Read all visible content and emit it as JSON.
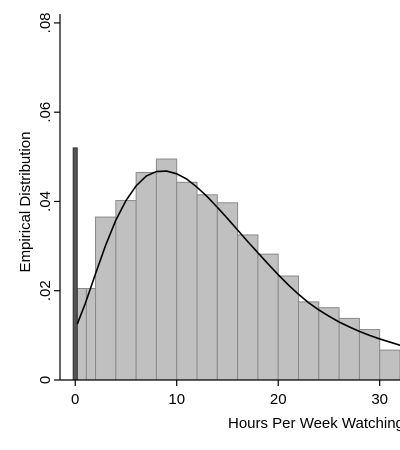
{
  "chart_data": {
    "type": "bar",
    "xlabel": "Hours Per Week Watching",
    "ylabel": "Empirical Distribution",
    "xlim": [
      -1.5,
      32
    ],
    "ylim": [
      0,
      0.082
    ],
    "x_ticks": [
      0,
      10,
      20,
      30
    ],
    "x_tick_labels": [
      "0",
      "10",
      "20",
      "30"
    ],
    "y_ticks": [
      0,
      0.02,
      0.04,
      0.06,
      0.08
    ],
    "y_tick_labels": [
      "0",
      ".02",
      ".04",
      ".06",
      ".08"
    ],
    "grid": false,
    "legend": "none",
    "zero_bar": {
      "x0": -0.2,
      "x1": 0.2,
      "value": 0.052,
      "color": "#555555"
    },
    "histogram": {
      "color": "#c0c0c0",
      "edge_color": "#8a8a8a",
      "bins": [
        {
          "x0": 0.2,
          "x1": 1.1,
          "value": 0.0205
        },
        {
          "x0": 1.1,
          "x2": 0,
          "x1": 2.0,
          "value": 0.0205
        },
        {
          "x0": 2.0,
          "x1": 4.0,
          "value": 0.0365
        },
        {
          "x0": 4.0,
          "x1": 6.0,
          "value": 0.0402
        },
        {
          "x0": 6.0,
          "x1": 8.0,
          "value": 0.0465
        },
        {
          "x0": 8.0,
          "x1": 10.0,
          "value": 0.0495
        },
        {
          "x0": 10.0,
          "x1": 12.0,
          "value": 0.0443
        },
        {
          "x0": 12.0,
          "x1": 14.0,
          "value": 0.0415
        },
        {
          "x0": 14.0,
          "x1": 16.0,
          "value": 0.0397
        },
        {
          "x0": 16.0,
          "x1": 18.0,
          "value": 0.0325
        },
        {
          "x0": 18.0,
          "x1": 20.0,
          "value": 0.0282
        },
        {
          "x0": 20.0,
          "x1": 22.0,
          "value": 0.0233
        },
        {
          "x0": 22.0,
          "x1": 24.0,
          "value": 0.0175
        },
        {
          "x0": 24.0,
          "x1": 26.0,
          "value": 0.0162
        },
        {
          "x0": 26.0,
          "x1": 28.0,
          "value": 0.0138
        },
        {
          "x0": 28.0,
          "x1": 30.0,
          "value": 0.0113
        },
        {
          "x0": 30.0,
          "x1": 32.0,
          "value": 0.0067
        }
      ]
    },
    "density_curve": {
      "color": "#000000",
      "x": [
        0.2,
        1,
        2,
        3,
        4,
        5,
        6,
        7,
        8,
        9,
        10,
        11,
        12,
        13,
        14,
        15,
        16,
        17,
        18,
        19,
        20,
        21,
        22,
        23,
        24,
        25,
        26,
        27,
        28,
        29,
        30,
        31,
        32
      ],
      "y": [
        0.0125,
        0.0172,
        0.0238,
        0.0302,
        0.0358,
        0.0402,
        0.0435,
        0.0457,
        0.0467,
        0.0468,
        0.0462,
        0.045,
        0.0432,
        0.0411,
        0.0387,
        0.0362,
        0.0336,
        0.031,
        0.0285,
        0.026,
        0.0236,
        0.0213,
        0.0192,
        0.0173,
        0.0157,
        0.0143,
        0.013,
        0.0119,
        0.0109,
        0.01,
        0.0092,
        0.0085,
        0.0078
      ]
    }
  }
}
